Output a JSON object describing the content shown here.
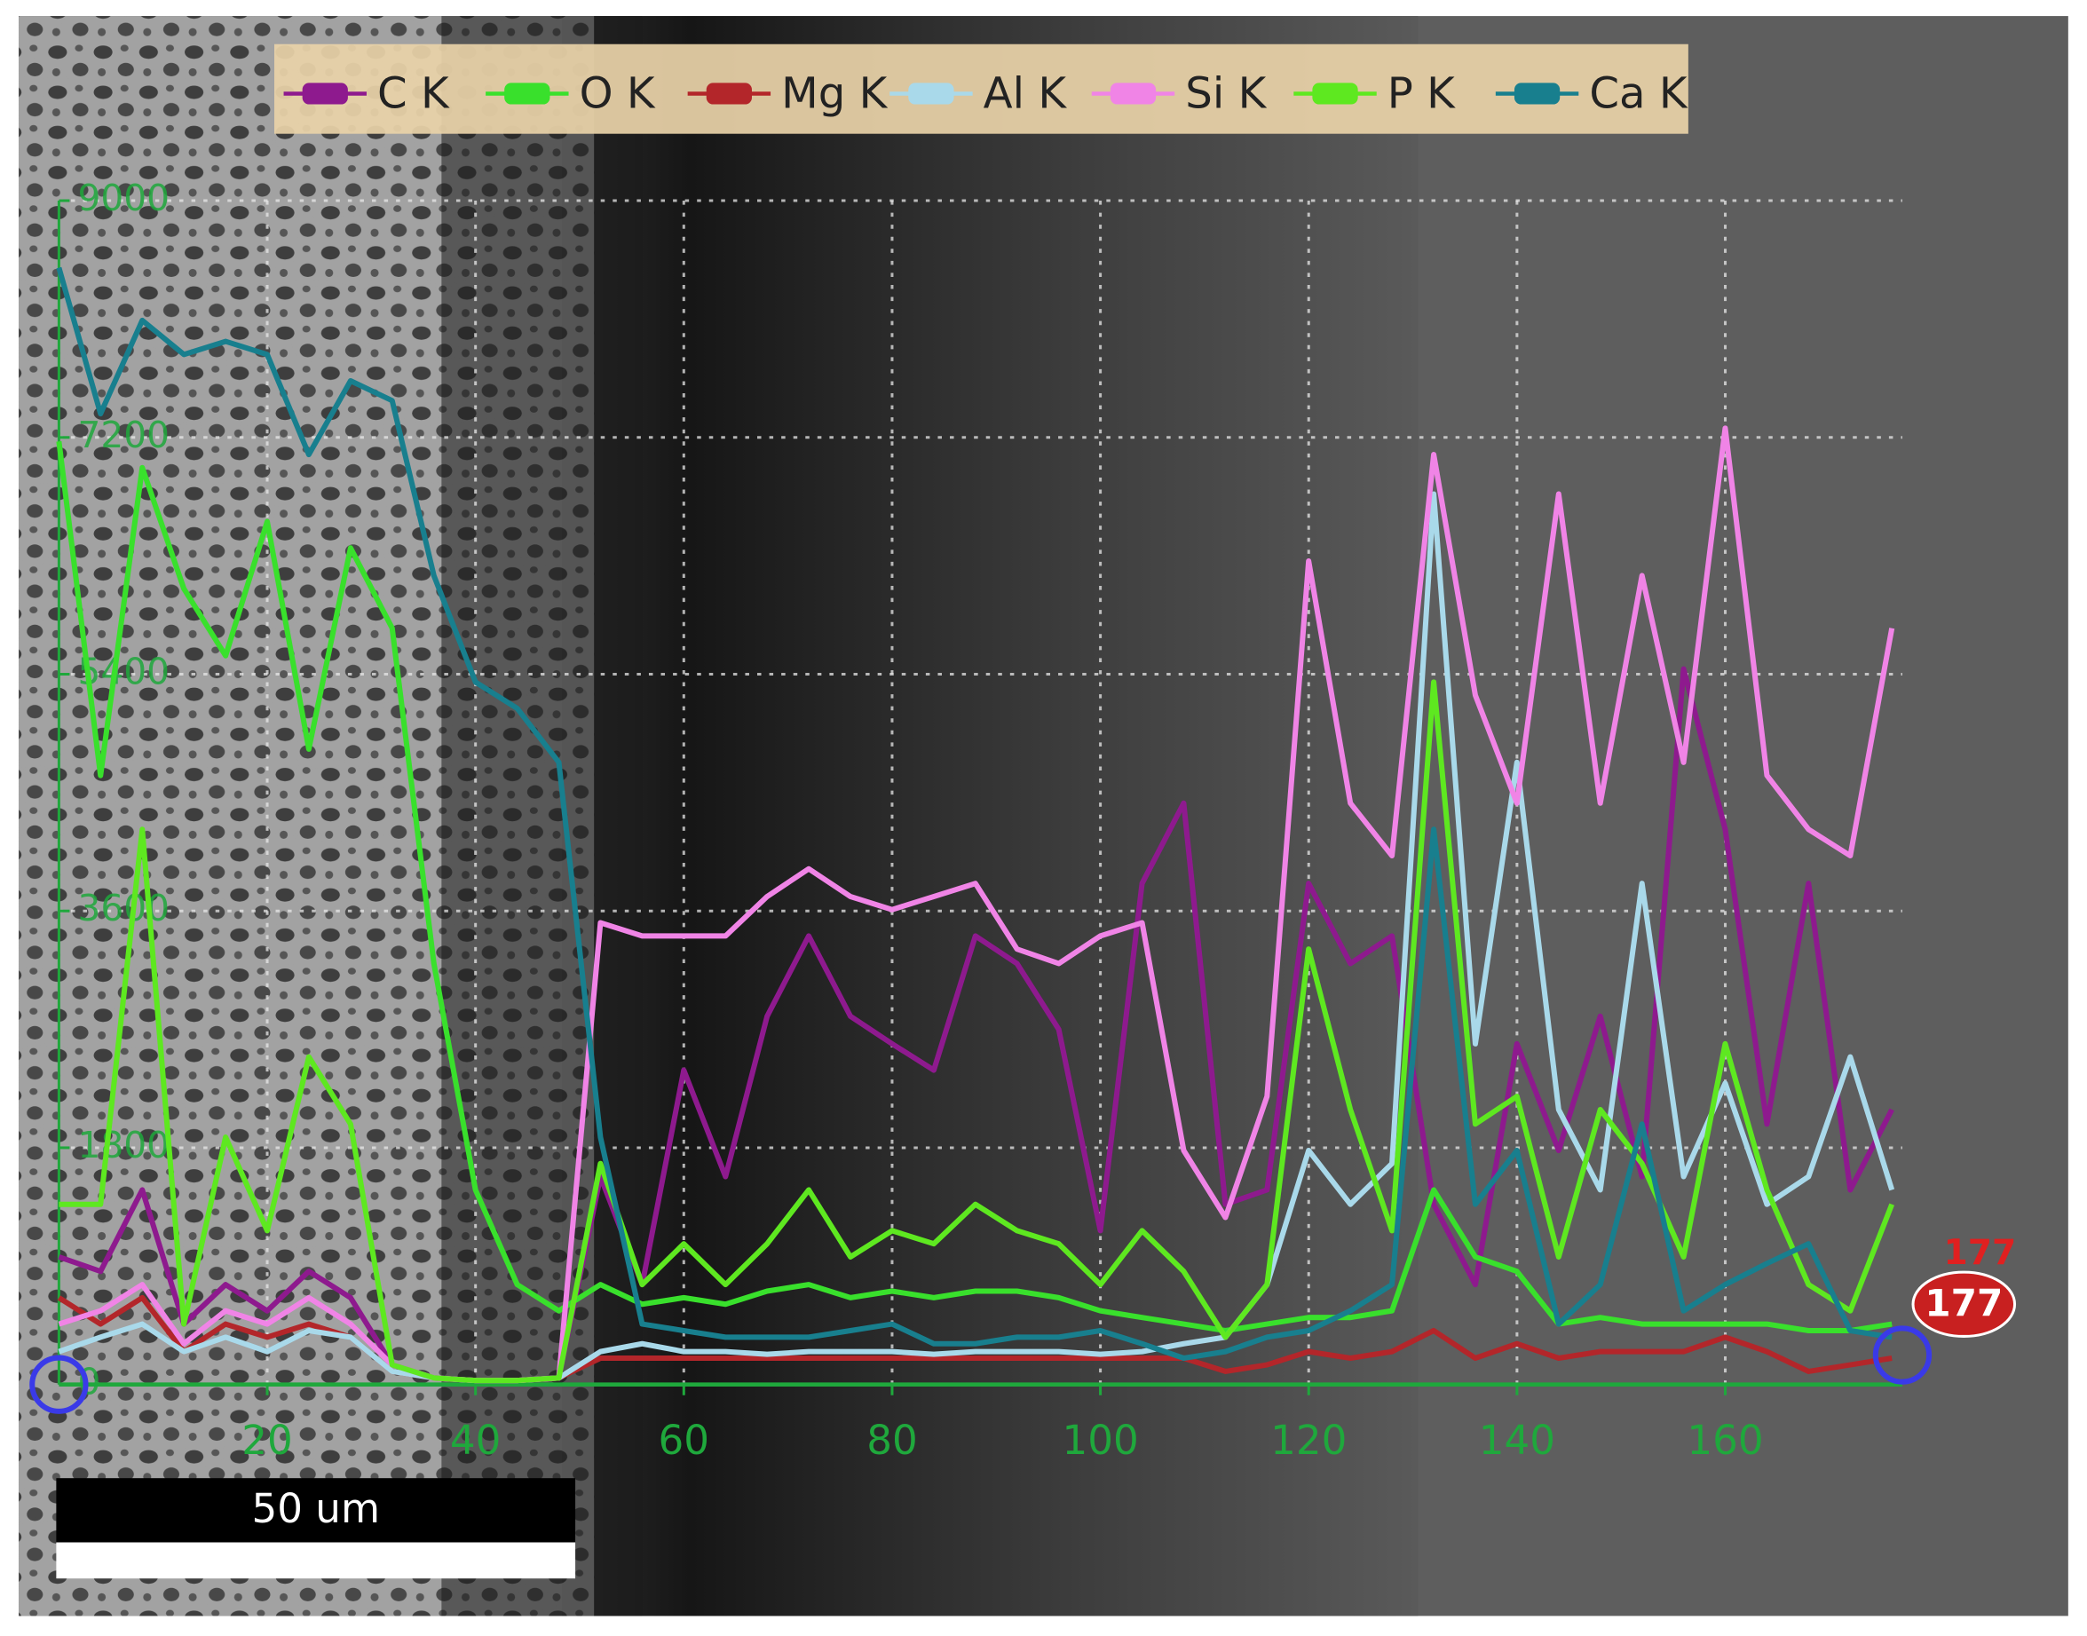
{
  "chart_data": {
    "type": "line",
    "x": [
      0,
      4,
      8,
      12,
      16,
      20,
      24,
      28,
      32,
      36,
      40,
      44,
      48,
      52,
      56,
      60,
      64,
      68,
      72,
      76,
      80,
      84,
      88,
      92,
      96,
      100,
      104,
      108,
      112,
      116,
      120,
      124,
      128,
      132,
      136,
      140,
      144,
      148,
      152,
      156,
      160,
      164,
      168,
      172,
      176
    ],
    "series": [
      {
        "name": "C K",
        "color": "#8e1a8e",
        "values": [
          970,
          860,
          1480,
          460,
          760,
          560,
          860,
          660,
          150,
          50,
          30,
          30,
          50,
          1580,
          760,
          2390,
          1580,
          2800,
          3410,
          2800,
          2590,
          2390,
          3410,
          3200,
          2700,
          1170,
          3810,
          4420,
          1370,
          1480,
          3810,
          3200,
          3410,
          1370,
          760,
          2590,
          1780,
          2800,
          1580,
          5440,
          4220,
          1980,
          3810,
          1480,
          2090
        ]
      },
      {
        "name": "O K",
        "color": "#39e02c",
        "values": [
          7170,
          4630,
          6970,
          6050,
          5540,
          6560,
          4830,
          6360,
          5750,
          3200,
          1480,
          760,
          560,
          760,
          610,
          660,
          610,
          710,
          760,
          660,
          710,
          660,
          710,
          710,
          660,
          560,
          510,
          460,
          410,
          460,
          510,
          510,
          560,
          1480,
          970,
          860,
          460,
          510,
          460,
          460,
          460,
          460,
          410,
          410,
          460
        ]
      },
      {
        "name": "Mg K",
        "color": "#b3262a",
        "values": [
          660,
          460,
          660,
          250,
          460,
          360,
          460,
          360,
          100,
          50,
          30,
          30,
          50,
          200,
          200,
          200,
          200,
          200,
          200,
          200,
          200,
          200,
          200,
          200,
          200,
          200,
          200,
          200,
          100,
          150,
          250,
          200,
          250,
          410,
          200,
          310,
          200,
          250,
          250,
          250,
          360,
          250,
          100,
          150,
          200
        ]
      },
      {
        "name": "Al K",
        "color": "#a9d9ea",
        "values": [
          250,
          360,
          460,
          250,
          360,
          250,
          410,
          360,
          100,
          50,
          30,
          30,
          50,
          250,
          310,
          250,
          250,
          230,
          250,
          250,
          250,
          230,
          250,
          250,
          250,
          230,
          250,
          310,
          360,
          760,
          1780,
          1370,
          1680,
          6770,
          2590,
          4730,
          2090,
          1480,
          3810,
          1580,
          2290,
          1370,
          1580,
          2490,
          1480
        ]
      },
      {
        "name": "Si K",
        "color": "#f084e6",
        "values": [
          460,
          560,
          760,
          310,
          560,
          460,
          660,
          460,
          150,
          50,
          30,
          30,
          50,
          3510,
          3410,
          3410,
          3410,
          3710,
          3920,
          3710,
          3610,
          3710,
          3810,
          3310,
          3200,
          3410,
          3510,
          1780,
          1270,
          2190,
          6260,
          4420,
          4020,
          7070,
          5240,
          4420,
          6770,
          4420,
          6150,
          4730,
          7270,
          4630,
          4220,
          4020,
          5750
        ]
      },
      {
        "name": "P K",
        "color": "#5ee820",
        "values": [
          1370,
          1370,
          4220,
          460,
          1880,
          1170,
          2490,
          1980,
          150,
          50,
          30,
          30,
          50,
          1680,
          760,
          1070,
          760,
          1070,
          1480,
          970,
          1170,
          1070,
          1370,
          1170,
          1070,
          760,
          1170,
          860,
          360,
          760,
          3310,
          2090,
          1170,
          5340,
          1980,
          2190,
          970,
          2090,
          1680,
          970,
          2590,
          1480,
          760,
          560,
          1370
        ]
      },
      {
        "name": "Ca K",
        "color": "#187f8e",
        "values": [
          8490,
          7380,
          8090,
          7830,
          7930,
          7830,
          7070,
          7630,
          7480,
          6150,
          5340,
          5140,
          4730,
          1880,
          460,
          410,
          360,
          360,
          360,
          410,
          460,
          310,
          310,
          360,
          360,
          410,
          310,
          200,
          250,
          360,
          410,
          560,
          760,
          4220,
          1370,
          1780,
          460,
          760,
          1980,
          560,
          760,
          920,
          1070,
          410,
          360
        ]
      }
    ],
    "xlim": [
      0,
      177
    ],
    "ylim": [
      0,
      9000
    ],
    "xticks": [
      20,
      40,
      60,
      80,
      100,
      120,
      140,
      160
    ],
    "yticks": [
      0,
      1800,
      3600,
      5400,
      7200,
      9000
    ],
    "grid": true,
    "axis_color": "#1fa83c",
    "cursor": 177,
    "scale_bar": "50 um"
  }
}
